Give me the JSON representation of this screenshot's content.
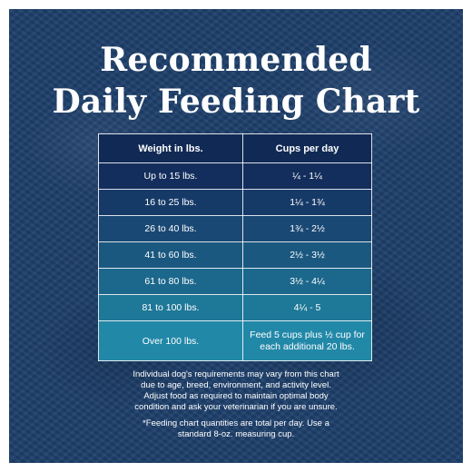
{
  "title": {
    "line1": "Recommended",
    "line2": "Daily Feeding Chart"
  },
  "table": {
    "headers": [
      "Weight in lbs.",
      "Cups per day"
    ],
    "rows": [
      [
        "Up to 15 lbs.",
        "¼ - 1¼"
      ],
      [
        "16 to 25 lbs.",
        "1¼ - 1¾"
      ],
      [
        "26 to 40 lbs.",
        "1¾ - 2½"
      ],
      [
        "41 to 60 lbs.",
        "2½ - 3½"
      ],
      [
        "61 to 80 lbs.",
        "3½ - 4¼"
      ],
      [
        "81 to 100 lbs.",
        "4¼ - 5"
      ],
      [
        "Over 100 lbs.",
        "Feed 5 cups plus ½ cup for each additional 20 lbs."
      ]
    ],
    "last_row_lines": [
      "Feed 5 cups plus ½ cup for",
      "each additional 20 lbs."
    ]
  },
  "disclaimer": {
    "lines": [
      "Individual dog's requirements may vary from this chart",
      "due to age, breed, environment, and activity level.",
      "Adjust food as required to maintain optimal body",
      "condition and ask your veterinarian if you are unsure."
    ]
  },
  "footnote": {
    "lines": [
      "*Feeding chart quantities are total per day. Use a",
      "standard 8-oz. measuring cup."
    ]
  },
  "colors": {
    "background": "#1d3f6b",
    "header_row": "#112a55",
    "row_gradient_top": "#132e5c",
    "row_gradient_bottom": "#2288a8",
    "text": "#ffffff"
  }
}
